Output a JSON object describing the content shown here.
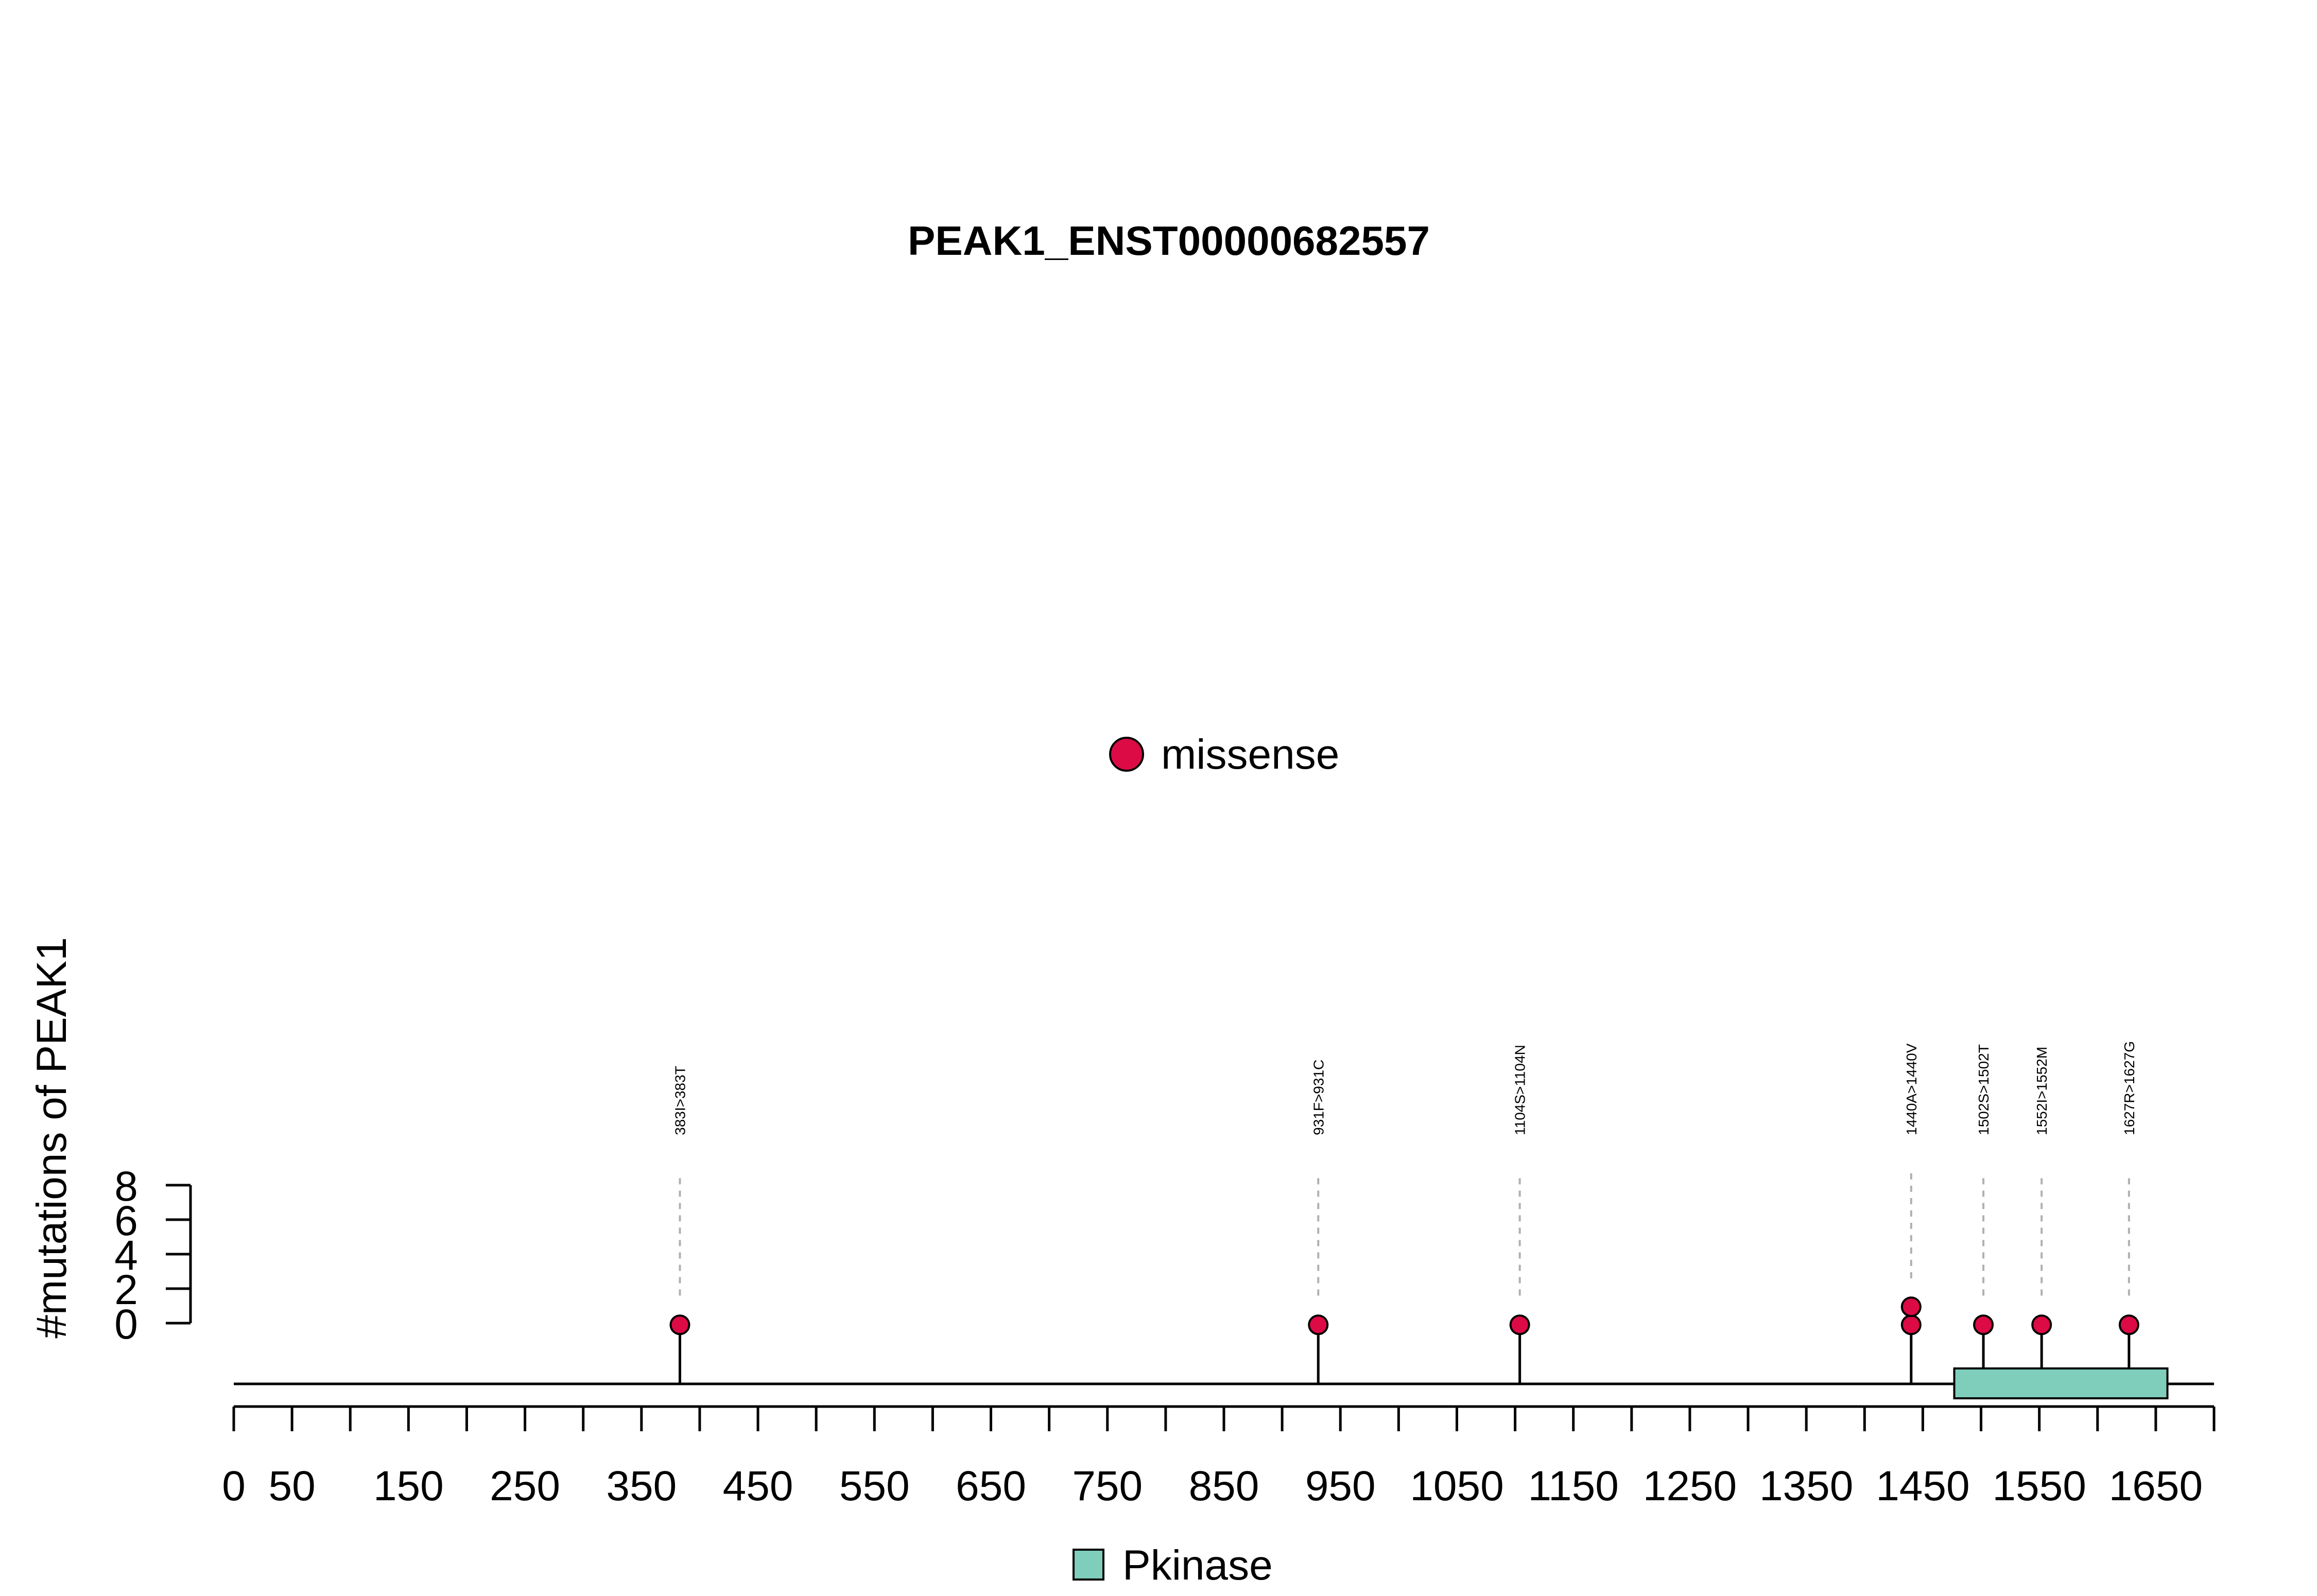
{
  "chart_data": {
    "type": "lollipop",
    "title": "PEAK1_ENST00000682557",
    "ylabel": "#mutations of PEAK1",
    "xlabel": "",
    "protein_length": 1700,
    "xlim": [
      0,
      1700
    ],
    "ylim": [
      0,
      8
    ],
    "x_ticks": [
      0,
      50,
      100,
      150,
      200,
      250,
      300,
      350,
      400,
      450,
      500,
      550,
      600,
      650,
      700,
      750,
      800,
      850,
      900,
      950,
      1000,
      1050,
      1100,
      1150,
      1200,
      1250,
      1300,
      1350,
      1400,
      1450,
      1500,
      1550,
      1600,
      1650,
      1700
    ],
    "x_tick_labels": [
      "0",
      "50",
      "150",
      "250",
      "350",
      "450",
      "550",
      "650",
      "750",
      "850",
      "950",
      "1050",
      "1150",
      "1250",
      "1350",
      "1450",
      "1550",
      "1650"
    ],
    "x_tick_label_values": [
      0,
      50,
      150,
      250,
      350,
      450,
      550,
      650,
      750,
      850,
      950,
      1050,
      1150,
      1250,
      1350,
      1450,
      1550,
      1650
    ],
    "y_ticks": [
      0,
      2,
      4,
      6,
      8
    ],
    "y_tick_labels": [
      "0",
      "2",
      "4",
      "6",
      "8"
    ],
    "series": [
      {
        "name": "missense",
        "color": "#dc0a45",
        "points": [
          {
            "position": 383,
            "count": 1,
            "label": "383I>383T"
          },
          {
            "position": 931,
            "count": 1,
            "label": "931F>931C"
          },
          {
            "position": 1104,
            "count": 1,
            "label": "1104S>1104N"
          },
          {
            "position": 1440,
            "count": 2,
            "label": "1440A>1440V"
          },
          {
            "position": 1502,
            "count": 1,
            "label": "1502S>1502T"
          },
          {
            "position": 1552,
            "count": 1,
            "label": "1552I>1552M"
          },
          {
            "position": 1627,
            "count": 1,
            "label": "1627R>1627G"
          }
        ]
      }
    ],
    "domains": [
      {
        "name": "Pkinase",
        "start": 1477,
        "end": 1660,
        "color": "#7fcdbb"
      }
    ],
    "legend_top": {
      "label": "missense",
      "color": "#dc0a45"
    },
    "legend_bottom": {
      "label": "Pkinase",
      "color": "#7fcdbb"
    }
  }
}
